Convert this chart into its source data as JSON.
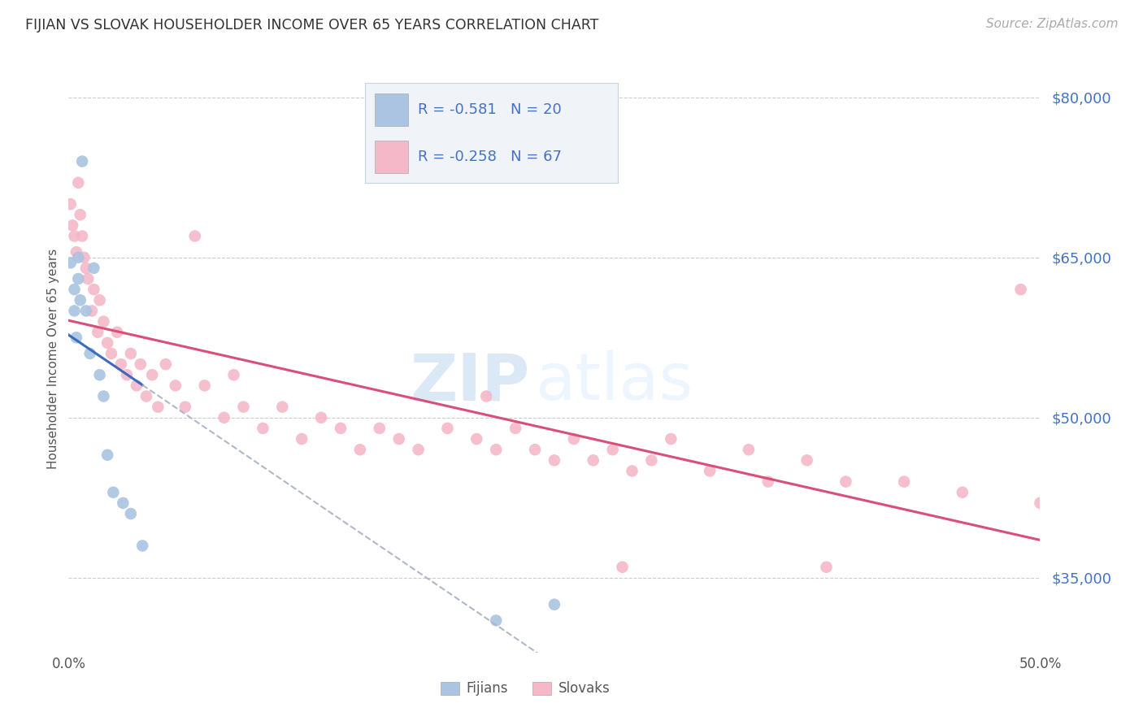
{
  "title": "FIJIAN VS SLOVAK HOUSEHOLDER INCOME OVER 65 YEARS CORRELATION CHART",
  "source": "Source: ZipAtlas.com",
  "ylabel": "Householder Income Over 65 years",
  "watermark_zip": "ZIP",
  "watermark_atlas": "atlas",
  "xlim": [
    0.0,
    0.5
  ],
  "ylim": [
    28000,
    83000
  ],
  "yticks": [
    35000,
    50000,
    65000,
    80000
  ],
  "ytick_labels": [
    "$35,000",
    "$50,000",
    "$65,000",
    "$80,000"
  ],
  "xticks": [
    0.0,
    0.1,
    0.2,
    0.3,
    0.4,
    0.5
  ],
  "xtick_labels": [
    "0.0%",
    "",
    "",
    "",
    "",
    "50.0%"
  ],
  "legend_text_fijian": "R = -0.581   N = 20",
  "legend_text_slovak": "R = -0.258   N = 67",
  "fijian_color": "#aac4e2",
  "slovak_color": "#f5b8c8",
  "fijian_line_color": "#3b6abf",
  "slovak_line_color": "#d94f7a",
  "fijian_line_dash_color": "#b0b8c8",
  "background_color": "#ffffff",
  "legend_box_color": "#f0f4f8",
  "legend_border_color": "#c8d4e0",
  "fijian_x": [
    0.001,
    0.003,
    0.003,
    0.004,
    0.005,
    0.005,
    0.006,
    0.007,
    0.009,
    0.011,
    0.013,
    0.016,
    0.018,
    0.02,
    0.023,
    0.028,
    0.032,
    0.038,
    0.22,
    0.25
  ],
  "fijian_y": [
    64500,
    62000,
    60000,
    57500,
    65000,
    63000,
    61000,
    74000,
    60000,
    56000,
    64000,
    54000,
    52000,
    46500,
    43000,
    42000,
    41000,
    38000,
    31000,
    32500
  ],
  "slovak_x": [
    0.001,
    0.002,
    0.003,
    0.004,
    0.005,
    0.006,
    0.007,
    0.008,
    0.009,
    0.01,
    0.012,
    0.013,
    0.015,
    0.016,
    0.018,
    0.02,
    0.022,
    0.025,
    0.027,
    0.03,
    0.032,
    0.035,
    0.037,
    0.04,
    0.043,
    0.046,
    0.05,
    0.055,
    0.06,
    0.065,
    0.07,
    0.08,
    0.085,
    0.09,
    0.1,
    0.11,
    0.12,
    0.13,
    0.14,
    0.15,
    0.16,
    0.17,
    0.18,
    0.195,
    0.21,
    0.215,
    0.22,
    0.23,
    0.24,
    0.25,
    0.26,
    0.27,
    0.28,
    0.29,
    0.3,
    0.31,
    0.33,
    0.35,
    0.36,
    0.38,
    0.4,
    0.285,
    0.43,
    0.46,
    0.49,
    0.39,
    0.5
  ],
  "slovak_y": [
    70000,
    68000,
    67000,
    65500,
    72000,
    69000,
    67000,
    65000,
    64000,
    63000,
    60000,
    62000,
    58000,
    61000,
    59000,
    57000,
    56000,
    58000,
    55000,
    54000,
    56000,
    53000,
    55000,
    52000,
    54000,
    51000,
    55000,
    53000,
    51000,
    67000,
    53000,
    50000,
    54000,
    51000,
    49000,
    51000,
    48000,
    50000,
    49000,
    47000,
    49000,
    48000,
    47000,
    49000,
    48000,
    52000,
    47000,
    49000,
    47000,
    46000,
    48000,
    46000,
    47000,
    45000,
    46000,
    48000,
    45000,
    47000,
    44000,
    46000,
    44000,
    36000,
    44000,
    43000,
    62000,
    36000,
    42000
  ]
}
